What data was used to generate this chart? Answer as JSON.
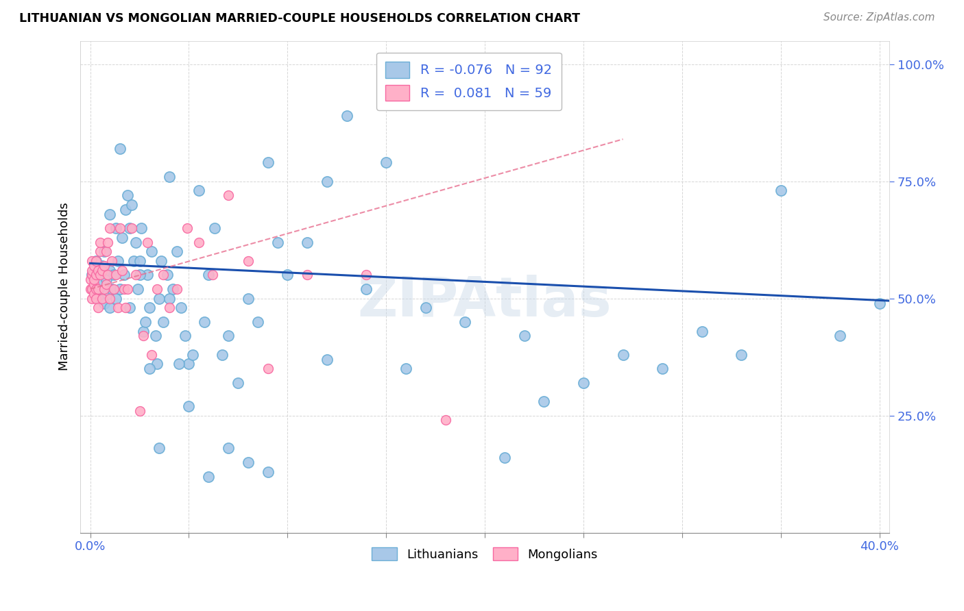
{
  "title": "LITHUANIAN VS MONGOLIAN MARRIED-COUPLE HOUSEHOLDS CORRELATION CHART",
  "source": "Source: ZipAtlas.com",
  "ylabel": "Married-couple Households",
  "blue_scatter_color": "#a8c8e8",
  "blue_edge_color": "#6baed6",
  "pink_scatter_color": "#ffb0c8",
  "pink_edge_color": "#f768a1",
  "blue_line_color": "#1a4fad",
  "pink_line_color": "#e87090",
  "watermark": "ZIPAtlas",
  "background_color": "#ffffff",
  "grid_color": "#cccccc",
  "ytick_color": "#4169e1",
  "xtick_label_color": "#4169e1",
  "R_blue": -0.076,
  "N_blue": 92,
  "R_pink": 0.081,
  "N_pink": 59,
  "blue_x": [
    0.001,
    0.002,
    0.003,
    0.004,
    0.005,
    0.006,
    0.007,
    0.007,
    0.008,
    0.009,
    0.01,
    0.01,
    0.011,
    0.012,
    0.013,
    0.013,
    0.014,
    0.015,
    0.016,
    0.017,
    0.018,
    0.019,
    0.02,
    0.021,
    0.022,
    0.023,
    0.024,
    0.025,
    0.026,
    0.027,
    0.028,
    0.029,
    0.03,
    0.031,
    0.033,
    0.034,
    0.035,
    0.036,
    0.037,
    0.039,
    0.04,
    0.042,
    0.044,
    0.046,
    0.048,
    0.05,
    0.052,
    0.055,
    0.058,
    0.06,
    0.063,
    0.067,
    0.07,
    0.075,
    0.08,
    0.085,
    0.09,
    0.095,
    0.1,
    0.11,
    0.12,
    0.13,
    0.14,
    0.15,
    0.17,
    0.19,
    0.21,
    0.23,
    0.25,
    0.27,
    0.29,
    0.31,
    0.33,
    0.35,
    0.38,
    0.4,
    0.01,
    0.015,
    0.02,
    0.025,
    0.03,
    0.035,
    0.04,
    0.045,
    0.05,
    0.06,
    0.07,
    0.08,
    0.09,
    0.12,
    0.16,
    0.22
  ],
  "blue_y": [
    0.55,
    0.52,
    0.58,
    0.5,
    0.53,
    0.57,
    0.6,
    0.49,
    0.54,
    0.51,
    0.56,
    0.48,
    0.52,
    0.55,
    0.5,
    0.65,
    0.58,
    0.52,
    0.63,
    0.55,
    0.69,
    0.72,
    0.65,
    0.7,
    0.58,
    0.62,
    0.52,
    0.58,
    0.65,
    0.43,
    0.45,
    0.55,
    0.48,
    0.6,
    0.42,
    0.36,
    0.5,
    0.58,
    0.45,
    0.55,
    0.76,
    0.52,
    0.6,
    0.48,
    0.42,
    0.36,
    0.38,
    0.73,
    0.45,
    0.55,
    0.65,
    0.38,
    0.42,
    0.32,
    0.5,
    0.45,
    0.79,
    0.62,
    0.55,
    0.62,
    0.75,
    0.89,
    0.52,
    0.79,
    0.48,
    0.45,
    0.16,
    0.28,
    0.32,
    0.38,
    0.35,
    0.43,
    0.38,
    0.73,
    0.42,
    0.49,
    0.68,
    0.82,
    0.48,
    0.55,
    0.35,
    0.18,
    0.5,
    0.36,
    0.27,
    0.12,
    0.18,
    0.15,
    0.13,
    0.37,
    0.35,
    0.42
  ],
  "pink_x": [
    0.0,
    0.0,
    0.001,
    0.001,
    0.001,
    0.001,
    0.001,
    0.002,
    0.002,
    0.002,
    0.002,
    0.003,
    0.003,
    0.003,
    0.003,
    0.004,
    0.004,
    0.004,
    0.005,
    0.005,
    0.005,
    0.006,
    0.006,
    0.007,
    0.007,
    0.008,
    0.008,
    0.009,
    0.009,
    0.01,
    0.01,
    0.011,
    0.012,
    0.013,
    0.014,
    0.015,
    0.016,
    0.017,
    0.018,
    0.019,
    0.021,
    0.023,
    0.025,
    0.027,
    0.029,
    0.031,
    0.034,
    0.037,
    0.04,
    0.044,
    0.049,
    0.055,
    0.062,
    0.07,
    0.08,
    0.09,
    0.11,
    0.14,
    0.18
  ],
  "pink_y": [
    0.52,
    0.54,
    0.55,
    0.56,
    0.52,
    0.58,
    0.5,
    0.53,
    0.51,
    0.54,
    0.57,
    0.52,
    0.55,
    0.5,
    0.58,
    0.52,
    0.56,
    0.48,
    0.55,
    0.6,
    0.62,
    0.5,
    0.56,
    0.52,
    0.57,
    0.53,
    0.6,
    0.55,
    0.62,
    0.5,
    0.65,
    0.58,
    0.52,
    0.55,
    0.48,
    0.65,
    0.56,
    0.52,
    0.48,
    0.52,
    0.65,
    0.55,
    0.26,
    0.42,
    0.62,
    0.38,
    0.52,
    0.55,
    0.48,
    0.52,
    0.65,
    0.62,
    0.55,
    0.72,
    0.58,
    0.35,
    0.55,
    0.55,
    0.24
  ]
}
